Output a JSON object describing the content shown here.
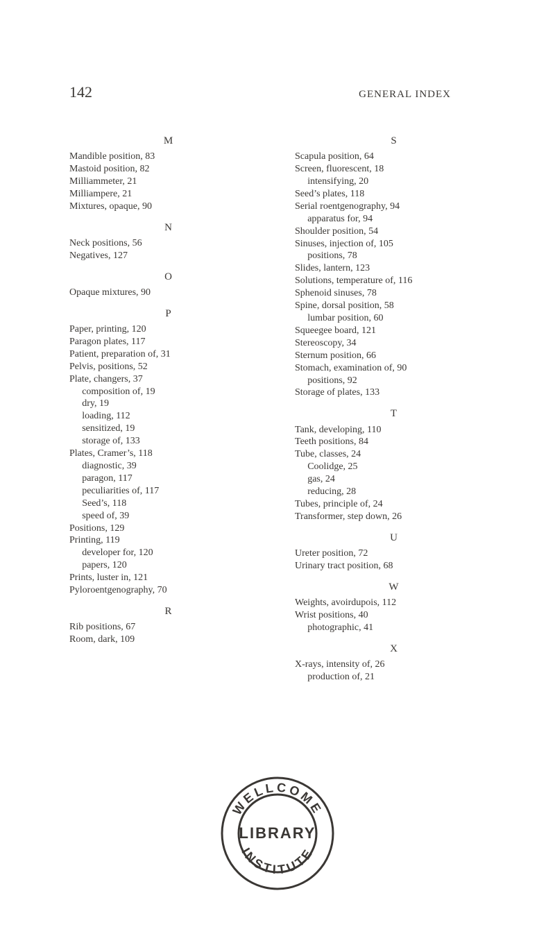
{
  "page_background": "#ffffff",
  "text_color": "#3a3734",
  "header": {
    "page_number": "142",
    "page_number_fontsize": 22,
    "running_title": "GENERAL INDEX",
    "running_title_fontsize": 15
  },
  "body_fontsize": 14,
  "section_letter_fontsize": 15,
  "columns": {
    "left": [
      {
        "type": "letter",
        "text": "M"
      },
      {
        "type": "entry",
        "text": "Mandible position, 83"
      },
      {
        "type": "entry",
        "text": "Mastoid position, 82"
      },
      {
        "type": "entry",
        "text": "Milliammeter, 21"
      },
      {
        "type": "entry",
        "text": "Milliampere, 21"
      },
      {
        "type": "entry",
        "text": "Mixtures, opaque, 90"
      },
      {
        "type": "letter",
        "text": "N"
      },
      {
        "type": "entry",
        "text": "Neck positions, 56"
      },
      {
        "type": "entry",
        "text": "Negatives, 127"
      },
      {
        "type": "letter",
        "text": "O"
      },
      {
        "type": "entry",
        "text": "Opaque mixtures, 90"
      },
      {
        "type": "letter",
        "text": "P"
      },
      {
        "type": "entry",
        "text": "Paper, printing, 120"
      },
      {
        "type": "entry",
        "text": "Paragon plates, 117"
      },
      {
        "type": "entry",
        "text": "Patient, preparation of, 31"
      },
      {
        "type": "entry",
        "text": "Pelvis, positions, 52"
      },
      {
        "type": "entry",
        "text": "Plate, changers, 37"
      },
      {
        "type": "sub",
        "text": "composition of, 19"
      },
      {
        "type": "sub",
        "text": "dry, 19"
      },
      {
        "type": "sub",
        "text": "loading, 112"
      },
      {
        "type": "sub",
        "text": "sensitized, 19"
      },
      {
        "type": "sub",
        "text": "storage of, 133"
      },
      {
        "type": "entry",
        "text": "Plates, Cramer’s, 118"
      },
      {
        "type": "sub",
        "text": "diagnostic, 39"
      },
      {
        "type": "sub",
        "text": "paragon, 117"
      },
      {
        "type": "sub",
        "text": "peculiarities of, 117"
      },
      {
        "type": "sub",
        "text": "Seed’s, 118"
      },
      {
        "type": "sub",
        "text": "speed of, 39"
      },
      {
        "type": "entry",
        "text": "Positions, 129"
      },
      {
        "type": "entry",
        "text": "Printing, 119"
      },
      {
        "type": "sub",
        "text": "developer for, 120"
      },
      {
        "type": "sub",
        "text": "papers, 120"
      },
      {
        "type": "entry",
        "text": "Prints, luster in, 121"
      },
      {
        "type": "entry",
        "text": "Pyloroentgenography, 70"
      },
      {
        "type": "letter",
        "text": "R"
      },
      {
        "type": "entry",
        "text": "Rib positions, 67"
      },
      {
        "type": "entry",
        "text": "Room, dark, 109"
      }
    ],
    "right": [
      {
        "type": "letter",
        "text": "S"
      },
      {
        "type": "entry",
        "text": "Scapula position, 64"
      },
      {
        "type": "entry",
        "text": "Screen, fluorescent, 18"
      },
      {
        "type": "sub",
        "text": "intensifying, 20"
      },
      {
        "type": "entry",
        "text": "Seed’s plates, 118"
      },
      {
        "type": "entry",
        "text": "Serial roentgenography, 94"
      },
      {
        "type": "sub",
        "text": "apparatus for, 94"
      },
      {
        "type": "entry",
        "text": "Shoulder position, 54"
      },
      {
        "type": "entry",
        "text": "Sinuses, injection of, 105"
      },
      {
        "type": "sub",
        "text": "positions, 78"
      },
      {
        "type": "entry",
        "text": "Slides, lantern, 123"
      },
      {
        "type": "entry",
        "text": "Solutions, temperature of, 116"
      },
      {
        "type": "entry",
        "text": "Sphenoid sinuses, 78"
      },
      {
        "type": "entry",
        "text": "Spine, dorsal position, 58"
      },
      {
        "type": "sub",
        "text": "lumbar position, 60"
      },
      {
        "type": "entry",
        "text": "Squeegee board, 121"
      },
      {
        "type": "entry",
        "text": "Stereoscopy, 34"
      },
      {
        "type": "entry",
        "text": "Sternum position, 66"
      },
      {
        "type": "entry",
        "text": "Stomach, examination of, 90"
      },
      {
        "type": "sub",
        "text": "positions, 92"
      },
      {
        "type": "entry",
        "text": "Storage of plates, 133"
      },
      {
        "type": "letter",
        "text": "T"
      },
      {
        "type": "entry",
        "text": "Tank, developing, 110"
      },
      {
        "type": "entry",
        "text": "Teeth positions, 84"
      },
      {
        "type": "entry",
        "text": "Tube, classes, 24"
      },
      {
        "type": "sub",
        "text": "Coolidge, 25"
      },
      {
        "type": "sub",
        "text": "gas, 24"
      },
      {
        "type": "sub",
        "text": "reducing, 28"
      },
      {
        "type": "entry",
        "text": "Tubes, principle of, 24"
      },
      {
        "type": "entry",
        "text": "Transformer, step down, 26"
      },
      {
        "type": "letter",
        "text": "U"
      },
      {
        "type": "entry",
        "text": "Ureter position, 72"
      },
      {
        "type": "entry",
        "text": "Urinary tract position, 68"
      },
      {
        "type": "letter",
        "text": "W"
      },
      {
        "type": "entry",
        "text": "Weights, avoirdupois, 112"
      },
      {
        "type": "entry",
        "text": "Wrist positions, 40"
      },
      {
        "type": "sub",
        "text": "photographic, 41"
      },
      {
        "type": "letter",
        "text": "X"
      },
      {
        "type": "entry",
        "text": "X-rays, intensity of, 26"
      },
      {
        "type": "sub",
        "text": "production of, 21"
      }
    ]
  },
  "seal": {
    "outer_radius": 80,
    "inner_radius": 56,
    "stroke_color": "#3a3734",
    "stroke_width": 3,
    "top_text": "WELLCOME",
    "bottom_text": "INSTITUTE",
    "center_text": "LIBRARY",
    "arc_fontsize": 18,
    "center_fontsize": 22
  }
}
